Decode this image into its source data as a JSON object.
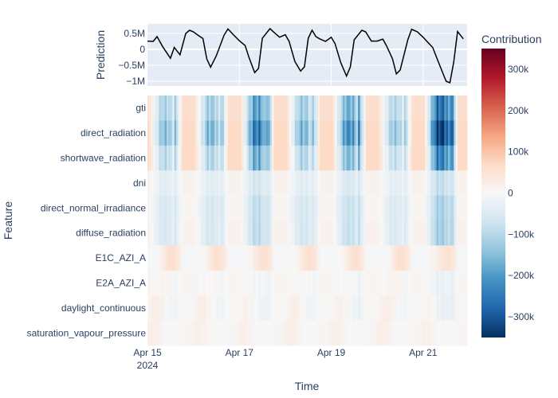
{
  "chart_data": {
    "type": "heatmap",
    "subplots": {
      "prediction_line": {
        "type": "line",
        "ylabel": "Prediction",
        "y_ticks": [
          "0.5M",
          "0",
          "−0.5M",
          "−1M"
        ],
        "y_tick_values": [
          500000,
          0,
          -500000,
          -1000000
        ],
        "ylim": [
          -1150000,
          800000
        ],
        "color": "#000000",
        "x_hours": [
          0,
          3,
          5,
          8,
          12,
          14,
          17,
          20,
          22,
          24,
          27,
          29,
          31,
          33,
          36,
          40,
          42,
          45,
          48,
          51,
          53,
          56,
          58,
          60,
          64,
          66,
          69,
          72,
          74,
          77,
          80,
          82,
          84,
          86,
          88,
          90,
          93,
          96,
          98,
          101,
          104,
          106,
          108,
          112,
          114,
          117,
          120,
          123,
          125,
          128,
          130,
          132,
          136,
          138,
          141,
          144,
          146,
          149,
          152,
          154,
          156,
          158,
          160,
          162,
          165
        ],
        "values": [
          260000,
          250000,
          400000,
          80000,
          -280000,
          60000,
          -170000,
          500000,
          600000,
          550000,
          420000,
          340000,
          -300000,
          -560000,
          -200000,
          440000,
          640000,
          450000,
          270000,
          120000,
          -250000,
          -730000,
          -600000,
          350000,
          650000,
          540000,
          380000,
          460000,
          250000,
          -380000,
          -680000,
          -550000,
          350000,
          600000,
          400000,
          330000,
          250000,
          380000,
          180000,
          -420000,
          -840000,
          -550000,
          300000,
          600000,
          550000,
          260000,
          260000,
          320000,
          100000,
          -300000,
          -770000,
          -650000,
          300000,
          630000,
          550000,
          380000,
          250000,
          60000,
          -400000,
          -700000,
          -1000000,
          -1050000,
          -400000,
          560000,
          330000
        ]
      },
      "contribution_heatmap": {
        "xlabel": "Time",
        "ylabel": "Feature",
        "x_ticks": [
          {
            "label": "Apr 15",
            "sub": "2024",
            "hours": 0
          },
          {
            "label": "Apr 17",
            "sub": "",
            "hours": 48
          },
          {
            "label": "Apr 19",
            "sub": "",
            "hours": 96
          },
          {
            "label": "Apr 21",
            "sub": "",
            "hours": 144
          }
        ],
        "x_range_hours": [
          0,
          167
        ],
        "features": [
          "gti",
          "direct_radiation",
          "shortwave_radiation",
          "dni",
          "direct_normal_irradiance",
          "diffuse_radiation",
          "E1C_AZI_A",
          "E2A_AZI_A",
          "daylight_continuous",
          "saturation_vapour_pressure"
        ],
        "colorbar": {
          "title": "Contribution",
          "ticks": [
            "300k",
            "200k",
            "100k",
            "0",
            "−100k",
            "−200k",
            "−300k"
          ],
          "tick_values": [
            300000,
            200000,
            100000,
            0,
            -100000,
            -200000,
            -300000
          ],
          "range": [
            -350000,
            350000
          ],
          "colorscale": "RdBu"
        },
        "day_troughs_hours": [
          [
            0,
            7,
            10,
            14,
            18
          ],
          [
            24,
            31,
            34,
            38,
            42
          ],
          [
            48,
            55,
            58,
            62,
            66
          ],
          [
            72,
            79,
            82,
            86,
            90
          ],
          [
            96,
            103,
            106,
            110,
            114
          ],
          [
            120,
            127,
            130,
            134,
            138
          ],
          [
            144,
            151,
            154,
            158,
            162
          ]
        ],
        "trough_scale": [
          0.7,
          0.75,
          1.05,
          0.75,
          0.95,
          0.65,
          1.4
        ],
        "night_values_k": [
          60,
          70,
          70,
          12,
          8,
          15,
          -5,
          8,
          3,
          5
        ],
        "day_values_k": [
          -220,
          -280,
          -200,
          -70,
          -95,
          -100,
          25,
          -45,
          -40,
          -10
        ],
        "aux_peak_k": [
          0,
          0,
          0,
          0,
          0,
          0,
          70,
          30,
          45,
          20
        ]
      }
    }
  }
}
